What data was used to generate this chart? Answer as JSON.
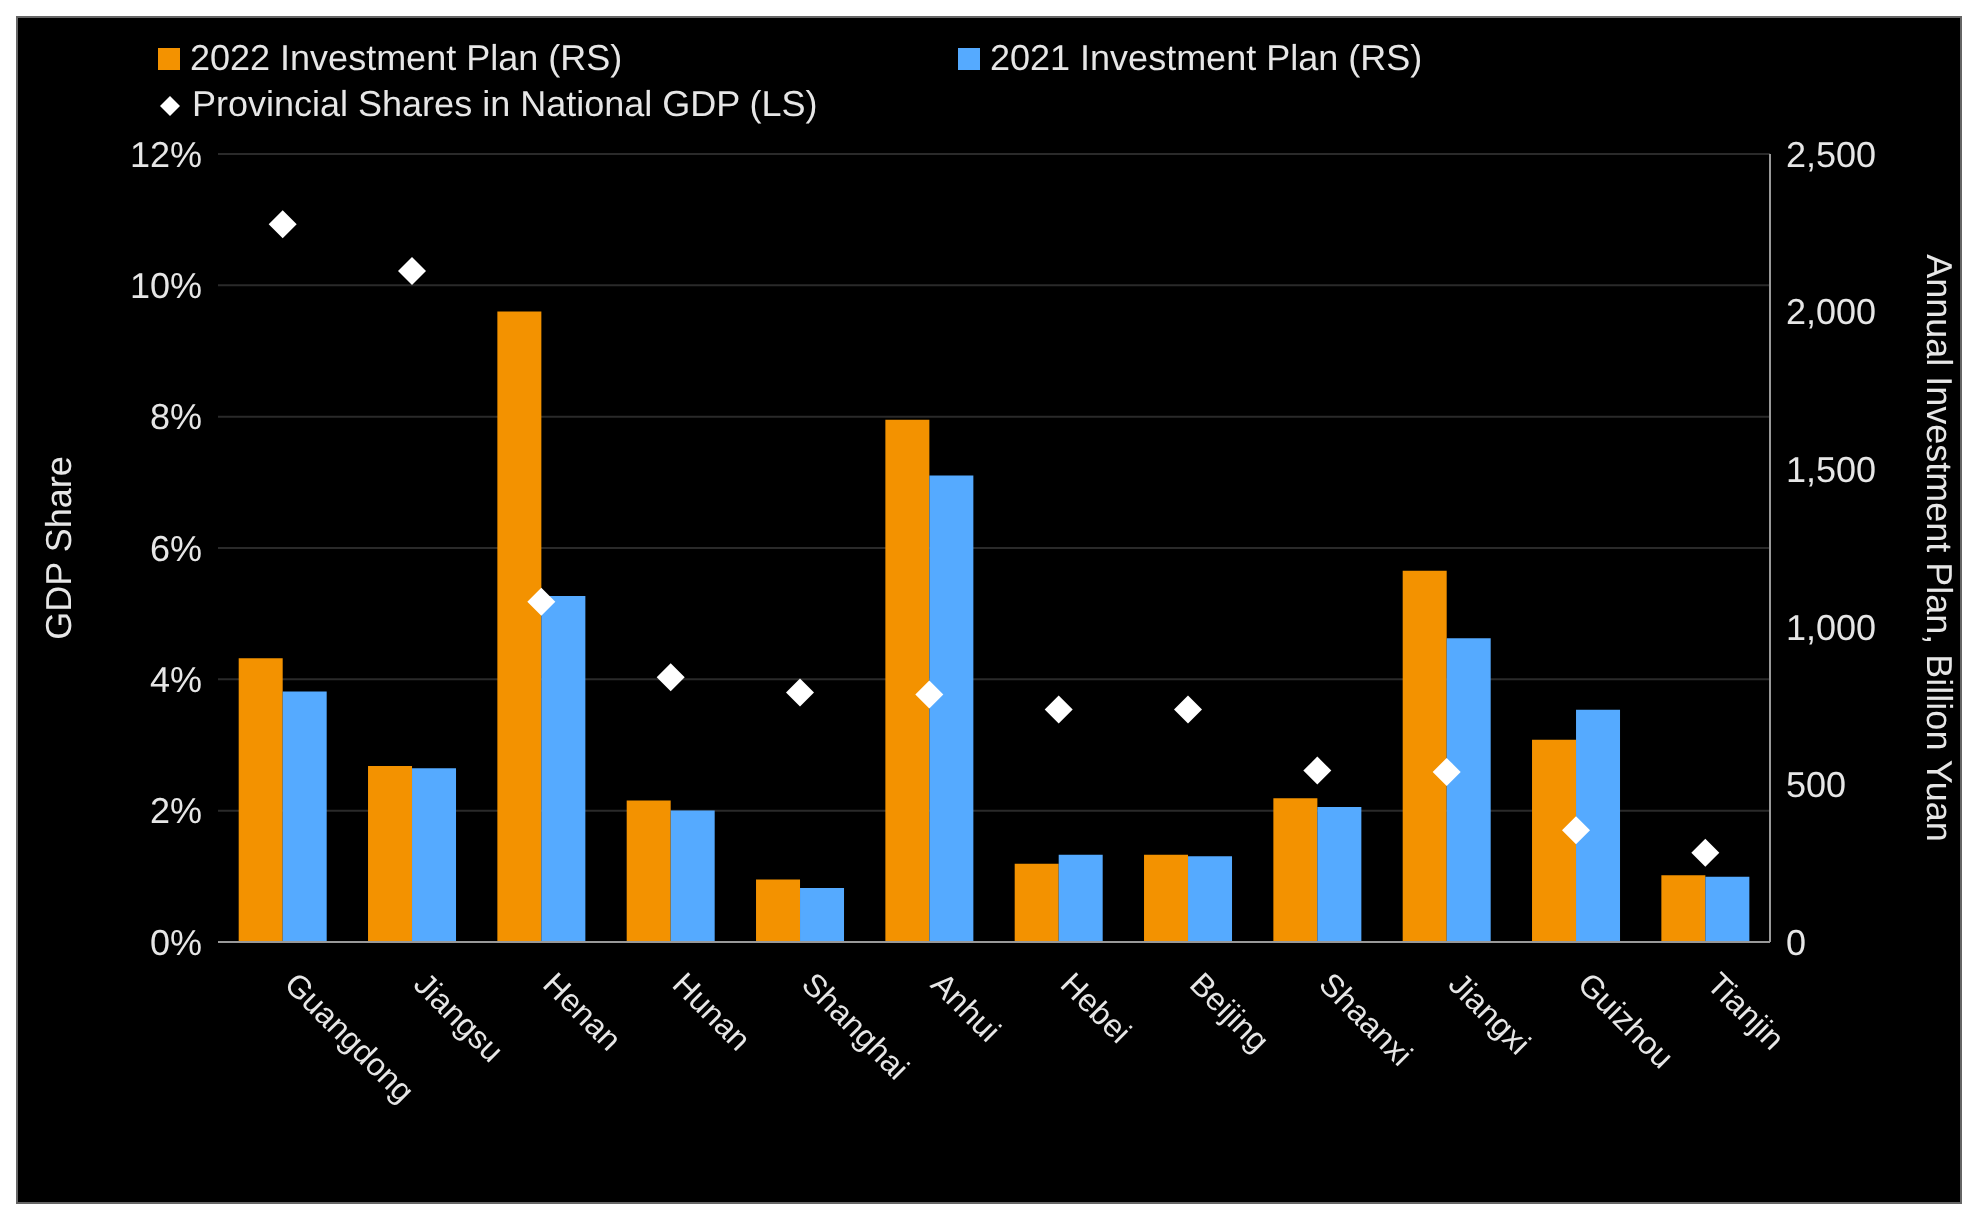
{
  "chart_data": {
    "type": "bar",
    "categories": [
      "Guangdong",
      "Jiangsu",
      "Henan",
      "Hunan",
      "Shanghai",
      "Anhui",
      "Hebei",
      "Beijing",
      "Shaanxi",
      "Jiangxi",
      "Guizhou",
      "Tianjin"
    ],
    "series": [
      {
        "name": "2022 Investment Plan (RS)",
        "axis": "y2",
        "color": "#f39200",
        "values": [
          900,
          558,
          2000,
          449,
          198,
          1657,
          248,
          277,
          456,
          1178,
          642,
          212
        ]
      },
      {
        "name": "2021 Investment Plan (RS)",
        "axis": "y2",
        "color": "#55aaff",
        "values": [
          795,
          551,
          1098,
          417,
          171,
          1480,
          277,
          272,
          428,
          964,
          737,
          207
        ]
      },
      {
        "name": "Provincial Shares in National GDP (LS)",
        "type": "scatter",
        "axis": "y",
        "color": "#ffffff",
        "marker": "diamond",
        "values": [
          10.93,
          10.22,
          5.18,
          4.03,
          3.8,
          3.77,
          3.54,
          3.54,
          2.61,
          2.59,
          1.7,
          1.36
        ]
      }
    ],
    "ylabel": "GDP Share",
    "y2label": "Annual Investment Plan, Billion Yuan",
    "ylim": [
      0,
      12
    ],
    "yticks": [
      {
        "value": 0,
        "label": "0%"
      },
      {
        "value": 2,
        "label": "2%"
      },
      {
        "value": 4,
        "label": "4%"
      },
      {
        "value": 6,
        "label": "6%"
      },
      {
        "value": 8,
        "label": "8%"
      },
      {
        "value": 10,
        "label": "10%"
      },
      {
        "value": 12,
        "label": "12%"
      }
    ],
    "y2lim": [
      0,
      2500
    ],
    "y2ticks": [
      0,
      500,
      {
        "value": 1000,
        "label": "1,000"
      },
      {
        "value": 1500,
        "label": "1,500"
      },
      {
        "value": 2000,
        "label": "2,000"
      },
      {
        "value": 2500,
        "label": "2,500"
      }
    ],
    "grid": "y",
    "legend": "top"
  }
}
